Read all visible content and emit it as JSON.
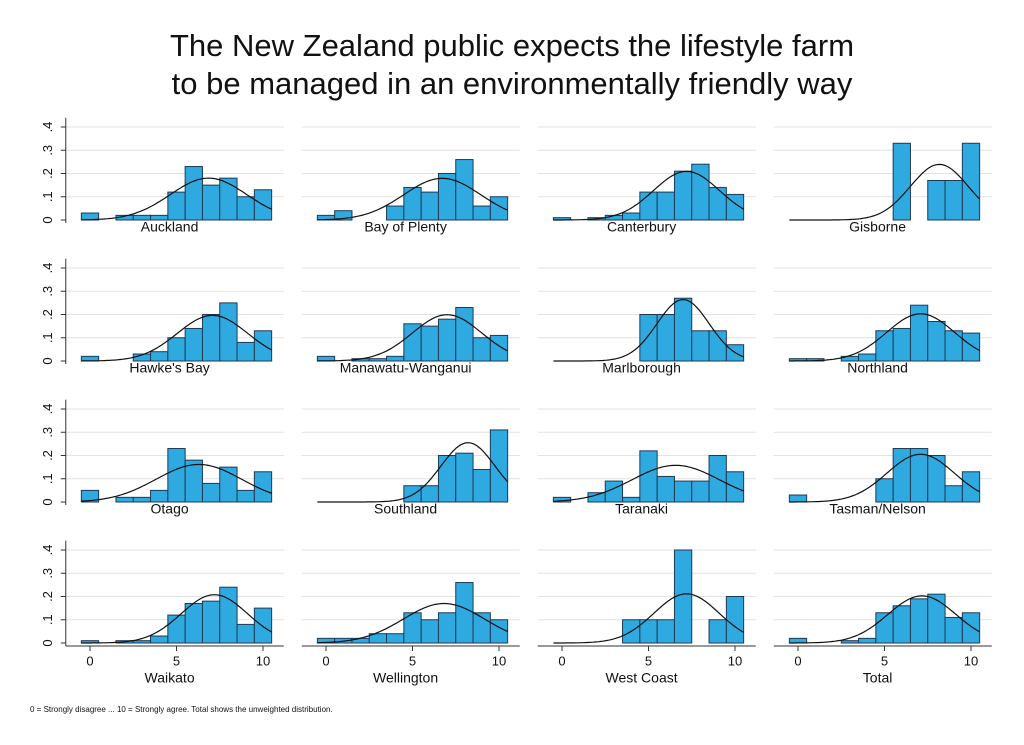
{
  "chart_data": {
    "type": "histogram",
    "title": [
      "The New Zealand public expects the lifestyle farm",
      "to be managed in an environmentally friendly way"
    ],
    "note": "0 = Strongly disagree ... 10 = Strongly agree. Total shows the unweighted distribution.",
    "bins": [
      -0.5,
      0.5,
      1.5,
      2.5,
      3.5,
      4.5,
      5.5,
      6.5,
      7.5,
      8.5,
      9.5,
      10.5
    ],
    "xlim": [
      -1.4,
      11.2
    ],
    "ylim": [
      0,
      0.44
    ],
    "xticks": [
      0,
      5,
      10
    ],
    "yticks": [
      0,
      {
        "value": 0.1,
        "label": ".1"
      },
      {
        "value": 0.2,
        "label": ".2"
      },
      {
        "value": 0.3,
        "label": ".3"
      },
      {
        "value": 0.4,
        "label": ".4"
      }
    ],
    "grid": true,
    "color": "#2eaae1",
    "panels": [
      {
        "name": "Auckland",
        "values": [
          0.03,
          0,
          0.02,
          0.02,
          0.02,
          0.12,
          0.23,
          0.15,
          0.18,
          0.1,
          0.13
        ]
      },
      {
        "name": "Bay of Plenty",
        "values": [
          0.02,
          0.04,
          0,
          0,
          0.06,
          0.14,
          0.12,
          0.2,
          0.26,
          0.06,
          0.1
        ]
      },
      {
        "name": "Canterbury",
        "values": [
          0.01,
          0,
          0.01,
          0.02,
          0.03,
          0.12,
          0.12,
          0.21,
          0.24,
          0.14,
          0.11
        ]
      },
      {
        "name": "Gisborne",
        "values": [
          0,
          0,
          0,
          0,
          0,
          0,
          0.33,
          0,
          0.17,
          0.17,
          0.33
        ]
      },
      {
        "name": "Hawke's Bay",
        "values": [
          0.02,
          0,
          0,
          0.03,
          0.04,
          0.1,
          0.14,
          0.2,
          0.25,
          0.08,
          0.13
        ]
      },
      {
        "name": "Manawatu-Wanganui",
        "values": [
          0.02,
          0,
          0.01,
          0.01,
          0.02,
          0.16,
          0.15,
          0.18,
          0.23,
          0.1,
          0.11
        ]
      },
      {
        "name": "Marlborough",
        "values": [
          0,
          0,
          0,
          0,
          0,
          0.2,
          0.2,
          0.27,
          0.13,
          0.13,
          0.07
        ]
      },
      {
        "name": "Northland",
        "values": [
          0.01,
          0.01,
          0,
          0.02,
          0.03,
          0.13,
          0.14,
          0.24,
          0.17,
          0.13,
          0.12
        ]
      },
      {
        "name": "Otago",
        "values": [
          0.05,
          0,
          0.02,
          0.02,
          0.05,
          0.23,
          0.18,
          0.08,
          0.15,
          0.05,
          0.13
        ]
      },
      {
        "name": "Southland",
        "values": [
          0,
          0,
          0,
          0,
          0,
          0.07,
          0.07,
          0.2,
          0.21,
          0.14,
          0.31
        ]
      },
      {
        "name": "Taranaki",
        "values": [
          0.02,
          0,
          0.04,
          0.09,
          0.02,
          0.22,
          0.11,
          0.09,
          0.09,
          0.2,
          0.13
        ]
      },
      {
        "name": "Tasman/Nelson",
        "values": [
          0.03,
          0,
          0,
          0,
          0,
          0.1,
          0.23,
          0.23,
          0.2,
          0.07,
          0.13
        ]
      },
      {
        "name": "Waikato",
        "values": [
          0.01,
          0,
          0.01,
          0.01,
          0.03,
          0.12,
          0.17,
          0.18,
          0.24,
          0.08,
          0.15
        ]
      },
      {
        "name": "Wellington",
        "values": [
          0.02,
          0.02,
          0.02,
          0.04,
          0.04,
          0.13,
          0.1,
          0.13,
          0.26,
          0.13,
          0.1
        ]
      },
      {
        "name": "West Coast",
        "values": [
          0,
          0,
          0,
          0,
          0.1,
          0.1,
          0.1,
          0.4,
          0,
          0.1,
          0.2
        ]
      },
      {
        "name": "Total",
        "values": [
          0.02,
          0,
          0,
          0.01,
          0.02,
          0.13,
          0.16,
          0.19,
          0.21,
          0.11,
          0.13
        ]
      }
    ]
  }
}
